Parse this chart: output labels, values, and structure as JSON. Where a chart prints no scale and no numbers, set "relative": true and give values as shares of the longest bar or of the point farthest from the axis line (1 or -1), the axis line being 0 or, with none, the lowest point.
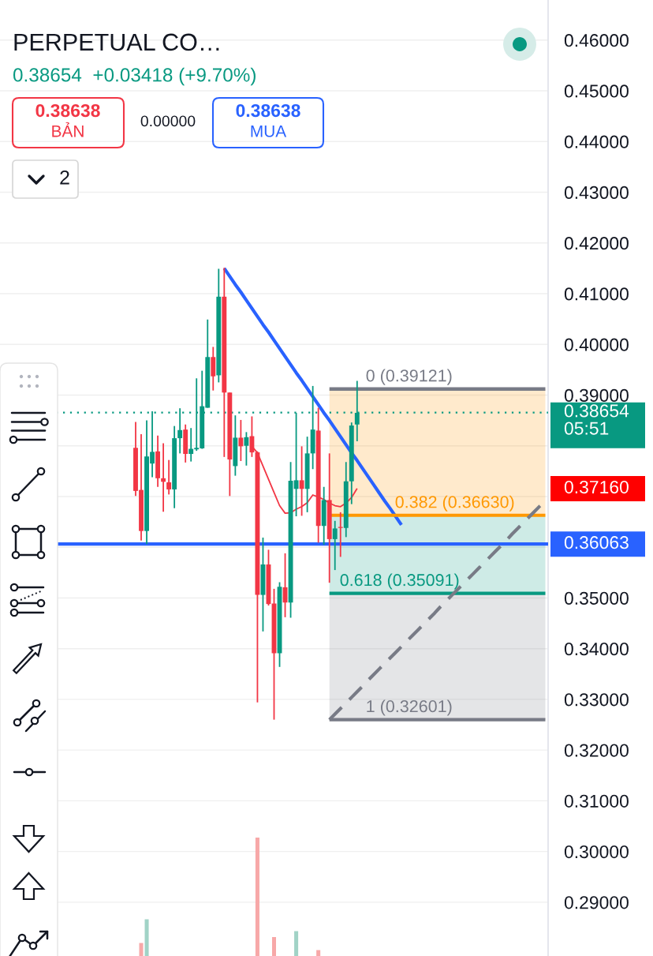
{
  "chart_data": [
    {
      "type": "candlestick",
      "title": "PERPETUAL CO…",
      "subtitle": "0.38654  +0.03418 (+9.70%)",
      "categories": [
        null,
        null,
        null,
        null,
        null,
        null,
        null,
        null,
        null,
        null,
        null,
        null,
        null,
        null,
        null,
        null,
        null,
        null,
        null,
        null,
        null,
        null,
        null,
        null,
        null,
        null,
        null,
        null,
        null,
        null,
        null,
        null,
        null,
        null,
        null,
        null,
        null,
        null,
        null,
        null,
        null,
        null,
        null,
        null,
        null,
        null,
        null,
        null,
        null,
        null,
        null,
        null,
        null,
        null,
        null,
        null,
        null,
        null,
        null,
        null,
        null,
        null,
        null,
        null,
        null,
        null,
        null,
        null,
        null,
        null,
        null,
        null,
        null,
        null,
        null,
        null,
        null,
        null,
        null,
        null,
        null,
        null,
        null,
        null,
        null,
        null,
        null,
        null,
        null,
        null,
        null,
        null,
        null,
        null,
        null,
        null,
        null,
        null,
        null
      ],
      "ohlc": [
        null,
        null,
        null,
        null,
        null,
        null,
        null,
        null,
        null,
        null,
        null,
        null,
        null,
        null,
        null,
        null,
        null,
        null,
        null,
        null,
        null,
        null,
        null,
        null,
        [
          0.3796,
          0.3847,
          0.3701,
          0.3711
        ],
        [
          0.3713,
          0.3823,
          0.3613,
          0.3632
        ],
        [
          0.3632,
          0.385,
          0.3606,
          0.3779
        ],
        [
          0.3765,
          0.3868,
          0.3738,
          0.3788
        ],
        [
          0.3789,
          0.382,
          0.3719,
          0.3736
        ],
        [
          0.3736,
          0.3805,
          0.367,
          0.3729
        ],
        [
          0.3728,
          0.3772,
          0.3704,
          0.3714
        ],
        [
          0.3714,
          0.3839,
          0.3677,
          0.3815
        ],
        [
          0.3815,
          0.3874,
          0.3785,
          0.3831
        ],
        [
          0.3832,
          0.3842,
          0.3767,
          0.3784
        ],
        [
          0.3784,
          0.3835,
          0.3769,
          0.3794
        ],
        [
          0.3793,
          0.3933,
          0.379,
          0.3796
        ],
        [
          0.3795,
          0.3948,
          0.3794,
          0.3878
        ],
        [
          0.3875,
          0.4049,
          0.3875,
          0.3975
        ],
        [
          0.3975,
          0.3995,
          0.3909,
          0.3937
        ],
        [
          0.3939,
          0.4149,
          0.3925,
          0.4094
        ],
        [
          0.4094,
          0.4151,
          0.3778,
          0.3905
        ],
        [
          0.3905,
          0.3905,
          0.3701,
          0.3773
        ],
        [
          0.376,
          0.386,
          0.3741,
          0.3816
        ],
        [
          0.3816,
          0.3851,
          0.377,
          0.3799
        ],
        [
          0.38,
          0.3827,
          0.3761,
          0.3817
        ],
        [
          0.3819,
          0.3858,
          0.3778,
          0.3787
        ],
        [
          0.3787,
          0.3789,
          0.3294,
          0.3506
        ],
        [
          0.3506,
          0.3619,
          0.3434,
          0.3566
        ],
        [
          0.3566,
          0.3595,
          0.3485,
          0.3488
        ],
        [
          0.3489,
          0.3518,
          0.326,
          0.3391
        ],
        [
          0.3391,
          0.3531,
          0.3364,
          0.3522
        ],
        [
          0.3521,
          0.3588,
          0.3462,
          0.3491
        ],
        [
          0.3491,
          0.3768,
          0.3461,
          0.3731
        ],
        [
          0.3715,
          0.3865,
          0.3661,
          0.3732
        ],
        [
          0.3732,
          0.3799,
          0.3662,
          0.3715
        ],
        [
          0.3715,
          0.3818,
          0.3669,
          0.3785
        ],
        [
          0.3785,
          0.3918,
          0.3754,
          0.3832
        ],
        [
          0.383,
          0.3875,
          0.3609,
          0.3642
        ],
        [
          0.3642,
          0.3719,
          0.3605,
          0.3693
        ],
        [
          0.3693,
          0.3785,
          0.353,
          0.3616
        ],
        [
          0.3616,
          0.3652,
          0.3555,
          0.3637
        ],
        [
          0.364,
          0.3669,
          0.3581,
          0.3638
        ],
        [
          0.3638,
          0.3768,
          0.362,
          0.373
        ],
        [
          0.373,
          0.3846,
          0.3685,
          0.384
        ],
        [
          0.3842,
          0.3928,
          0.3809,
          0.3865
        ],
        null,
        null,
        null,
        null,
        null,
        null,
        null,
        null,
        null,
        null,
        null,
        null,
        null,
        null,
        null,
        null,
        null,
        null,
        null,
        null,
        null,
        null,
        null,
        null,
        null,
        null,
        null,
        null,
        null,
        null,
        null,
        null,
        null,
        null
      ],
      "colors": [
        null,
        null,
        null,
        null,
        null,
        null,
        null,
        null,
        null,
        null,
        null,
        null,
        null,
        null,
        null,
        null,
        null,
        null,
        null,
        null,
        null,
        null,
        null,
        null,
        "#f23645",
        "#f23645",
        "#089981",
        "#089981",
        "#f23645",
        "#f23645",
        "#f23645",
        "#089981",
        "#089981",
        "#f23645",
        "#089981",
        "#089981",
        "#089981",
        "#089981",
        "#f23645",
        "#089981",
        "#f23645",
        "#f23645",
        "#089981",
        "#f23645",
        "#089981",
        "#f23645",
        "#f23645",
        "#089981",
        "#f23645",
        "#f23645",
        "#089981",
        "#f23645",
        "#089981",
        "#089981",
        "#f23645",
        "#089981",
        "#089981",
        "#f23645",
        "#089981",
        "#f23645",
        "#089981",
        "#f23645",
        "#089981",
        "#089981",
        "#089981",
        null,
        null,
        null,
        null,
        null,
        null,
        null,
        null,
        null,
        null,
        null,
        null,
        null,
        null,
        null,
        null,
        null,
        null,
        null,
        null,
        null,
        null,
        null,
        null,
        null,
        null,
        null,
        null,
        null,
        null,
        null,
        null,
        null,
        null
      ],
      "series": [
        {
          "type": "line",
          "color": "#f23645",
          "values": [
            null,
            null,
            null,
            null,
            null,
            null,
            null,
            null,
            null,
            null,
            null,
            null,
            null,
            null,
            null,
            null,
            null,
            null,
            null,
            null,
            null,
            null,
            null,
            null,
            null,
            null,
            null,
            null,
            null,
            null,
            null,
            null,
            null,
            null,
            null,
            null,
            null,
            null,
            null,
            null,
            null,
            null,
            null,
            null,
            null,
            0.3799,
            0.3786,
            0.376,
            0.3734,
            0.3708,
            0.3682,
            0.3667,
            0.3668,
            0.3675,
            0.368,
            0.3688,
            0.3703,
            0.3699,
            0.3694,
            0.3687,
            0.3682,
            0.368,
            0.3687,
            0.3698,
            0.3716,
            null,
            null,
            null,
            null,
            null,
            null,
            null,
            null,
            null,
            null,
            null,
            null,
            null,
            null,
            null,
            null,
            null,
            null,
            null,
            null,
            null,
            null,
            null,
            null,
            null,
            null,
            null,
            null,
            null,
            null,
            null,
            null,
            null,
            null
          ]
        },
        {
          "type": "line",
          "color": "#2962ff",
          "values": [
            null,
            null,
            null,
            null,
            null,
            null,
            null,
            null,
            null,
            null,
            null,
            null,
            null,
            null,
            null,
            null,
            null,
            null,
            null,
            null,
            null,
            null,
            null,
            null,
            null,
            null,
            null,
            null,
            null,
            null,
            null,
            null,
            null,
            null,
            null,
            null,
            null,
            null,
            null,
            null,
            0.415,
            0.4134,
            0.4118,
            0.4103,
            0.4087,
            0.4071,
            0.4055,
            0.4039,
            0.4024,
            0.4008,
            0.3992,
            0.3976,
            0.396,
            0.3944,
            0.3929,
            0.3913,
            0.3897,
            0.3881,
            0.3865,
            0.385,
            0.3834,
            0.3818,
            0.3802,
            0.3786,
            0.3771,
            0.3755,
            0.3739,
            0.3723,
            0.3707,
            0.3691,
            0.3676,
            0.366,
            0.3644,
            null,
            null,
            null,
            null,
            null,
            null,
            null,
            null,
            null,
            null,
            null,
            null,
            null,
            null,
            null,
            null,
            null,
            null,
            null,
            null,
            null,
            null,
            null,
            null,
            null,
            null
          ]
        },
        {
          "type": "line",
          "name": "0 (0.39121)",
          "color": "#787b86",
          "values": [
            null,
            null,
            null,
            null,
            null,
            null,
            null,
            null,
            null,
            null,
            null,
            null,
            null,
            null,
            null,
            null,
            null,
            null,
            null,
            null,
            null,
            null,
            null,
            null,
            null,
            null,
            null,
            null,
            null,
            null,
            null,
            null,
            null,
            null,
            null,
            null,
            null,
            null,
            null,
            null,
            null,
            null,
            null,
            null,
            null,
            null,
            null,
            null,
            null,
            null,
            null,
            null,
            null,
            null,
            null,
            null,
            null,
            null,
            null,
            0.39121,
            0.39121,
            0.39121,
            0.39121,
            0.39121,
            0.39121,
            0.39121,
            0.39121,
            0.39121,
            0.39121,
            0.39121,
            0.39121,
            0.39121,
            0.39121,
            0.39121,
            0.39121,
            0.39121,
            0.39121,
            0.39121,
            0.39121,
            0.39121,
            0.39121,
            0.39121,
            0.39121,
            0.39121,
            0.39121,
            0.39121,
            0.39121,
            0.39121,
            0.39121,
            0.39121,
            0.39121,
            0.39121,
            0.39121,
            0.39121,
            0.39121,
            0.39121,
            0.39121,
            0.39121,
            0.39121
          ]
        },
        {
          "type": "line",
          "name": "0.382 (0.36630)",
          "color": "#ff9800",
          "values": [
            null,
            null,
            null,
            null,
            null,
            null,
            null,
            null,
            null,
            null,
            null,
            null,
            null,
            null,
            null,
            null,
            null,
            null,
            null,
            null,
            null,
            null,
            null,
            null,
            null,
            null,
            null,
            null,
            null,
            null,
            null,
            null,
            null,
            null,
            null,
            null,
            null,
            null,
            null,
            null,
            null,
            null,
            null,
            null,
            null,
            null,
            null,
            null,
            null,
            null,
            null,
            null,
            null,
            null,
            null,
            null,
            null,
            null,
            null,
            0.3663,
            0.3663,
            0.3663,
            0.3663,
            0.3663,
            0.3663,
            0.3663,
            0.3663,
            0.3663,
            0.3663,
            0.3663,
            0.3663,
            0.3663,
            0.3663,
            0.3663,
            0.3663,
            0.3663,
            0.3663,
            0.3663,
            0.3663,
            0.3663,
            0.3663,
            0.3663,
            0.3663,
            0.3663,
            0.3663,
            0.3663,
            0.3663,
            0.3663,
            0.3663,
            0.3663,
            0.3663,
            0.3663,
            0.3663,
            0.3663,
            0.3663,
            0.3663,
            0.3663,
            0.3663,
            0.3663
          ],
          "lower": [
            null,
            null,
            null,
            null,
            null,
            null,
            null,
            null,
            null,
            null,
            null,
            null,
            null,
            null,
            null,
            null,
            null,
            null,
            null,
            null,
            null,
            null,
            null,
            null,
            null,
            null,
            null,
            null,
            null,
            null,
            null,
            null,
            null,
            null,
            null,
            null,
            null,
            null,
            null,
            null,
            null,
            null,
            null,
            null,
            null,
            null,
            null,
            null,
            null,
            null,
            null,
            null,
            null,
            null,
            null,
            null,
            null,
            null,
            null,
            0.3663,
            0.3663,
            0.3663,
            0.3663,
            0.3663,
            0.3663,
            0.3663,
            0.3663,
            0.3663,
            0.3663,
            0.3663,
            0.3663,
            0.3663,
            0.3663,
            0.3663,
            0.3663,
            0.3663,
            0.3663,
            0.3663,
            0.3663,
            0.3663,
            0.3663,
            0.3663,
            0.3663,
            0.3663,
            0.3663,
            0.3663,
            0.3663,
            0.3663,
            0.3663,
            0.3663,
            0.3663,
            0.3663,
            0.3663,
            0.3663,
            0.3663,
            0.3663,
            0.3663,
            0.3663,
            0.3663
          ],
          "upper": [
            null,
            null,
            null,
            null,
            null,
            null,
            null,
            null,
            null,
            null,
            null,
            null,
            null,
            null,
            null,
            null,
            null,
            null,
            null,
            null,
            null,
            null,
            null,
            null,
            null,
            null,
            null,
            null,
            null,
            null,
            null,
            null,
            null,
            null,
            null,
            null,
            null,
            null,
            null,
            null,
            null,
            null,
            null,
            null,
            null,
            null,
            null,
            null,
            null,
            null,
            null,
            null,
            null,
            null,
            null,
            null,
            null,
            null,
            null,
            0.39121,
            0.39121,
            0.39121,
            0.39121,
            0.39121,
            0.39121,
            0.39121,
            0.39121,
            0.39121,
            0.39121,
            0.39121,
            0.39121,
            0.39121,
            0.39121,
            0.39121,
            0.39121,
            0.39121,
            0.39121,
            0.39121,
            0.39121,
            0.39121,
            0.39121,
            0.39121,
            0.39121,
            0.39121,
            0.39121,
            0.39121,
            0.39121,
            0.39121,
            0.39121,
            0.39121,
            0.39121,
            0.39121,
            0.39121,
            0.39121,
            0.39121,
            0.39121,
            0.39121,
            0.39121,
            0.39121
          ]
        },
        {
          "type": "line",
          "name": "0.618 (0.35091)",
          "color": "#089981",
          "values": [
            null,
            null,
            null,
            null,
            null,
            null,
            null,
            null,
            null,
            null,
            null,
            null,
            null,
            null,
            null,
            null,
            null,
            null,
            null,
            null,
            null,
            null,
            null,
            null,
            null,
            null,
            null,
            null,
            null,
            null,
            null,
            null,
            null,
            null,
            null,
            null,
            null,
            null,
            null,
            null,
            null,
            null,
            null,
            null,
            null,
            null,
            null,
            null,
            null,
            null,
            null,
            null,
            null,
            null,
            null,
            null,
            null,
            null,
            null,
            0.35091,
            0.35091,
            0.35091,
            0.35091,
            0.35091,
            0.35091,
            0.35091,
            0.35091,
            0.35091,
            0.35091,
            0.35091,
            0.35091,
            0.35091,
            0.35091,
            0.35091,
            0.35091,
            0.35091,
            0.35091,
            0.35091,
            0.35091,
            0.35091,
            0.35091,
            0.35091,
            0.35091,
            0.35091,
            0.35091,
            0.35091,
            0.35091,
            0.35091,
            0.35091,
            0.35091,
            0.35091,
            0.35091,
            0.35091,
            0.35091,
            0.35091,
            0.35091,
            0.35091,
            0.35091,
            0.35091
          ],
          "lower": [
            null,
            null,
            null,
            null,
            null,
            null,
            null,
            null,
            null,
            null,
            null,
            null,
            null,
            null,
            null,
            null,
            null,
            null,
            null,
            null,
            null,
            null,
            null,
            null,
            null,
            null,
            null,
            null,
            null,
            null,
            null,
            null,
            null,
            null,
            null,
            null,
            null,
            null,
            null,
            null,
            null,
            null,
            null,
            null,
            null,
            null,
            null,
            null,
            null,
            null,
            null,
            null,
            null,
            null,
            null,
            null,
            null,
            null,
            null,
            0.35091,
            0.35091,
            0.35091,
            0.35091,
            0.35091,
            0.35091,
            0.35091,
            0.35091,
            0.35091,
            0.35091,
            0.35091,
            0.35091,
            0.35091,
            0.35091,
            0.35091,
            0.35091,
            0.35091,
            0.35091,
            0.35091,
            0.35091,
            0.35091,
            0.35091,
            0.35091,
            0.35091,
            0.35091,
            0.35091,
            0.35091,
            0.35091,
            0.35091,
            0.35091,
            0.35091,
            0.35091,
            0.35091,
            0.35091,
            0.35091,
            0.35091,
            0.35091,
            0.35091,
            0.35091,
            0.35091
          ],
          "upper": [
            null,
            null,
            null,
            null,
            null,
            null,
            null,
            null,
            null,
            null,
            null,
            null,
            null,
            null,
            null,
            null,
            null,
            null,
            null,
            null,
            null,
            null,
            null,
            null,
            null,
            null,
            null,
            null,
            null,
            null,
            null,
            null,
            null,
            null,
            null,
            null,
            null,
            null,
            null,
            null,
            null,
            null,
            null,
            null,
            null,
            null,
            null,
            null,
            null,
            null,
            null,
            null,
            null,
            null,
            null,
            null,
            null,
            null,
            null,
            0.3663,
            0.3663,
            0.3663,
            0.3663,
            0.3663,
            0.3663,
            0.3663,
            0.3663,
            0.3663,
            0.3663,
            0.3663,
            0.3663,
            0.3663,
            0.3663,
            0.3663,
            0.3663,
            0.3663,
            0.3663,
            0.3663,
            0.3663,
            0.3663,
            0.3663,
            0.3663,
            0.3663,
            0.3663,
            0.3663,
            0.3663,
            0.3663,
            0.3663,
            0.3663,
            0.3663,
            0.3663,
            0.3663,
            0.3663,
            0.3663,
            0.3663,
            0.3663,
            0.3663,
            0.3663,
            0.3663
          ]
        },
        {
          "type": "line",
          "name": "1 (0.32601)",
          "color": "#787b86",
          "values": [
            null,
            null,
            null,
            null,
            null,
            null,
            null,
            null,
            null,
            null,
            null,
            null,
            null,
            null,
            null,
            null,
            null,
            null,
            null,
            null,
            null,
            null,
            null,
            null,
            null,
            null,
            null,
            null,
            null,
            null,
            null,
            null,
            null,
            null,
            null,
            null,
            null,
            null,
            null,
            null,
            null,
            null,
            null,
            null,
            null,
            null,
            null,
            null,
            null,
            null,
            null,
            null,
            null,
            null,
            null,
            null,
            null,
            null,
            null,
            0.32601,
            0.32601,
            0.32601,
            0.32601,
            0.32601,
            0.32601,
            0.32601,
            0.32601,
            0.32601,
            0.32601,
            0.32601,
            0.32601,
            0.32601,
            0.32601,
            0.32601,
            0.32601,
            0.32601,
            0.32601,
            0.32601,
            0.32601,
            0.32601,
            0.32601,
            0.32601,
            0.32601,
            0.32601,
            0.32601,
            0.32601,
            0.32601,
            0.32601,
            0.32601,
            0.32601,
            0.32601,
            0.32601,
            0.32601,
            0.32601,
            0.32601,
            0.32601,
            0.32601,
            0.32601,
            0.32601
          ],
          "lower": [
            null,
            null,
            null,
            null,
            null,
            null,
            null,
            null,
            null,
            null,
            null,
            null,
            null,
            null,
            null,
            null,
            null,
            null,
            null,
            null,
            null,
            null,
            null,
            null,
            null,
            null,
            null,
            null,
            null,
            null,
            null,
            null,
            null,
            null,
            null,
            null,
            null,
            null,
            null,
            null,
            null,
            null,
            null,
            null,
            null,
            null,
            null,
            null,
            null,
            null,
            null,
            null,
            null,
            null,
            null,
            null,
            null,
            null,
            null,
            0.32601,
            0.32601,
            0.32601,
            0.32601,
            0.32601,
            0.32601,
            0.32601,
            0.32601,
            0.32601,
            0.32601,
            0.32601,
            0.32601,
            0.32601,
            0.32601,
            0.32601,
            0.32601,
            0.32601,
            0.32601,
            0.32601,
            0.32601,
            0.32601,
            0.32601,
            0.32601,
            0.32601,
            0.32601,
            0.32601,
            0.32601,
            0.32601,
            0.32601,
            0.32601,
            0.32601,
            0.32601,
            0.32601,
            0.32601,
            0.32601,
            0.32601,
            0.32601,
            0.32601,
            0.32601,
            0.32601
          ],
          "upper": [
            null,
            null,
            null,
            null,
            null,
            null,
            null,
            null,
            null,
            null,
            null,
            null,
            null,
            null,
            null,
            null,
            null,
            null,
            null,
            null,
            null,
            null,
            null,
            null,
            null,
            null,
            null,
            null,
            null,
            null,
            null,
            null,
            null,
            null,
            null,
            null,
            null,
            null,
            null,
            null,
            null,
            null,
            null,
            null,
            null,
            null,
            null,
            null,
            null,
            null,
            null,
            null,
            null,
            null,
            null,
            null,
            null,
            null,
            null,
            0.35091,
            0.35091,
            0.35091,
            0.35091,
            0.35091,
            0.35091,
            0.35091,
            0.35091,
            0.35091,
            0.35091,
            0.35091,
            0.35091,
            0.35091,
            0.35091,
            0.35091,
            0.35091,
            0.35091,
            0.35091,
            0.35091,
            0.35091,
            0.35091,
            0.35091,
            0.35091,
            0.35091,
            0.35091,
            0.35091,
            0.35091,
            0.35091,
            0.35091,
            0.35091,
            0.35091,
            0.35091,
            0.35091,
            0.35091,
            0.35091,
            0.35091,
            0.35091,
            0.35091,
            0.35091,
            0.35091
          ]
        },
        {
          "type": "line",
          "color": "#787b86",
          "line_style": "dashed",
          "values": [
            null,
            null,
            null,
            null,
            null,
            null,
            null,
            null,
            null,
            null,
            null,
            null,
            null,
            null,
            null,
            null,
            null,
            null,
            null,
            null,
            null,
            null,
            null,
            null,
            null,
            null,
            null,
            null,
            null,
            null,
            null,
            null,
            null,
            null,
            null,
            null,
            null,
            null,
            null,
            null,
            null,
            null,
            null,
            null,
            null,
            null,
            null,
            null,
            null,
            null,
            null,
            null,
            null,
            null,
            null,
            null,
            null,
            null,
            null,
            0.326,
            0.3271,
            0.3282,
            0.3293,
            0.3304,
            0.3315,
            0.3326,
            0.3338,
            0.3349,
            0.336,
            0.3371,
            0.3382,
            0.3393,
            0.3404,
            0.3415,
            0.3426,
            0.3437,
            0.3448,
            0.3459,
            0.347,
            0.3482,
            0.3493,
            0.3504,
            0.3515,
            0.3526,
            0.3537,
            0.3548,
            0.3559,
            0.357,
            0.3581,
            0.3592,
            0.3603,
            0.3614,
            0.3626,
            0.3637,
            0.3648,
            0.3659,
            0.367,
            0.3681,
            0.3692
          ]
        }
      ],
      "ylim": [
        0.2794,
        0.4679
      ],
      "yticks": [
        {
          "value": 0.46,
          "label": "0.46000"
        },
        {
          "value": 0.45,
          "label": "0.45000"
        },
        {
          "value": 0.44,
          "label": "0.44000"
        },
        {
          "value": 0.43,
          "label": "0.43000"
        },
        {
          "value": 0.42,
          "label": "0.42000"
        },
        {
          "value": 0.41,
          "label": "0.41000"
        },
        {
          "value": 0.4,
          "label": "0.40000"
        },
        {
          "value": 0.39,
          "label": "0.39000"
        },
        {
          "value": 0.38,
          "label": null
        },
        {
          "value": 0.37,
          "label": null
        },
        {
          "value": 0.36,
          "label": null
        },
        {
          "value": 0.35,
          "label": "0.35000"
        },
        {
          "value": 0.34,
          "label": "0.34000"
        },
        {
          "value": 0.33,
          "label": "0.33000"
        },
        {
          "value": 0.32,
          "label": "0.32000"
        },
        {
          "value": 0.31,
          "label": "0.31000"
        },
        {
          "value": 0.3,
          "label": "0.30000"
        },
        {
          "value": 0.29,
          "label": "0.29000"
        }
      ],
      "tick_labels": "y",
      "grid": "y",
      "ref_lines": [
        {
          "axis": "y",
          "value": 0.38654,
          "label": "0.38654\n05:51",
          "color": "#089981",
          "line_style": "dotted"
        },
        {
          "axis": "y",
          "value": 0.36063,
          "label": "0.36063",
          "color": "#2962ff",
          "line_style": "solid"
        }
      ],
      "annotations": [
        "0.38638",
        "BẢN",
        "0.00000",
        "0.38638",
        "MUA",
        "2",
        "0.37160"
      ]
    },
    {
      "type": "bar",
      "relative": true,
      "categories": [
        null,
        null,
        null,
        null,
        null,
        null,
        null,
        null,
        null,
        null,
        null,
        null,
        null,
        null,
        null,
        null,
        null,
        null,
        null,
        null,
        null,
        null,
        null,
        null,
        null,
        null,
        null,
        null,
        null,
        null,
        null,
        null,
        null,
        null,
        null,
        null,
        null,
        null,
        null,
        null,
        null,
        null,
        null,
        null,
        null,
        null,
        null,
        null,
        null,
        null,
        null,
        null,
        null,
        null,
        null,
        null,
        null,
        null,
        null,
        null,
        null,
        null,
        null,
        null,
        null,
        null,
        null,
        null,
        null,
        null,
        null,
        null,
        null,
        null,
        null,
        null,
        null,
        null,
        null,
        null,
        null,
        null,
        null,
        null,
        null,
        null,
        null,
        null,
        null,
        null,
        null,
        null,
        null,
        null,
        null,
        null,
        null,
        null,
        null
      ],
      "values": [
        null,
        null,
        null,
        null,
        null,
        null,
        null,
        null,
        null,
        null,
        null,
        null,
        null,
        null,
        null,
        null,
        null,
        null,
        null,
        null,
        null,
        null,
        null,
        null,
        null,
        0.11,
        0.31,
        null,
        null,
        null,
        null,
        null,
        null,
        null,
        null,
        null,
        null,
        null,
        null,
        null,
        null,
        null,
        null,
        null,
        null,
        null,
        1,
        null,
        null,
        0.16,
        null,
        null,
        null,
        0.21,
        null,
        null,
        null,
        0.05,
        null,
        null,
        null,
        null,
        null,
        null,
        null,
        null,
        null,
        null,
        null,
        null,
        null,
        null,
        null,
        null,
        null,
        null,
        null,
        null,
        null,
        null,
        null,
        null,
        null,
        null,
        null,
        null,
        null,
        null,
        null,
        null,
        null,
        null,
        null,
        null,
        null,
        null,
        null,
        null,
        null
      ],
      "colors": [
        null,
        null,
        null,
        null,
        null,
        null,
        null,
        null,
        null,
        null,
        null,
        null,
        null,
        null,
        null,
        null,
        null,
        null,
        null,
        null,
        null,
        null,
        null,
        null,
        null,
        "#f7a8a8",
        "#a1d3c6",
        null,
        null,
        null,
        null,
        null,
        null,
        null,
        null,
        null,
        null,
        null,
        null,
        null,
        null,
        null,
        null,
        null,
        null,
        null,
        "#f7a8a8",
        null,
        null,
        "#f7a8a8",
        null,
        null,
        null,
        "#a1d3c6",
        null,
        null,
        null,
        "#f7a8a8",
        null,
        null,
        null,
        null,
        null,
        null,
        null,
        null,
        null,
        null,
        null,
        null,
        null,
        null,
        null,
        null,
        null,
        null,
        null,
        null,
        null,
        null,
        null,
        null,
        null,
        null,
        null,
        null,
        null,
        null,
        null,
        null,
        null,
        null,
        null,
        null,
        null,
        null,
        null,
        null,
        null
      ]
    }
  ]
}
